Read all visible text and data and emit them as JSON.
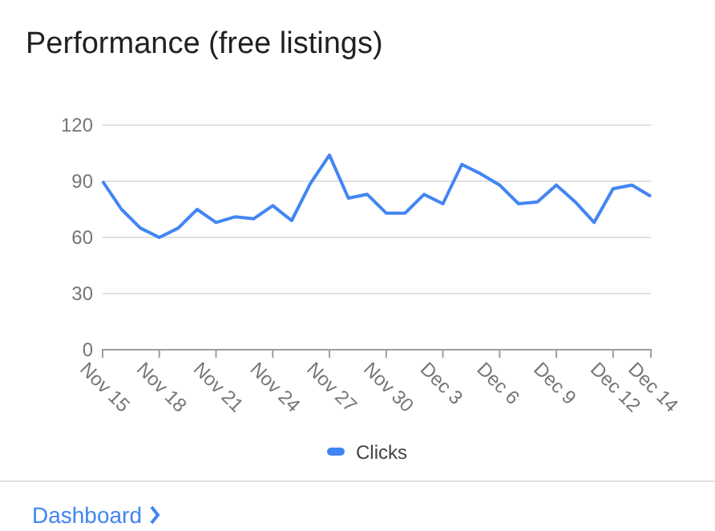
{
  "chart_data": {
    "type": "line",
    "title": "Performance (free listings)",
    "categories": [
      "Nov 15",
      null,
      null,
      "Nov 18",
      null,
      null,
      "Nov 21",
      null,
      null,
      "Nov 24",
      null,
      null,
      "Nov 27",
      null,
      null,
      "Nov 30",
      null,
      null,
      "Dec 3",
      null,
      null,
      "Dec 6",
      null,
      null,
      "Dec 9",
      null,
      null,
      "Dec 12",
      null,
      "Dec 14"
    ],
    "series": [
      {
        "name": "Clicks",
        "color": "#4285f4",
        "values": [
          90,
          75,
          65,
          60,
          65,
          75,
          68,
          71,
          70,
          77,
          69,
          89,
          104,
          81,
          83,
          73,
          73,
          83,
          78,
          99,
          94,
          88,
          78,
          79,
          88,
          79,
          68,
          86,
          88,
          82
        ]
      }
    ],
    "ylim": [
      0,
      120
    ],
    "yticks": [
      0,
      30,
      60,
      90,
      120
    ],
    "grid": "y",
    "legend": "bottom",
    "marker": "none",
    "line_style": "solid",
    "annotations": [
      "Dashboard"
    ]
  }
}
